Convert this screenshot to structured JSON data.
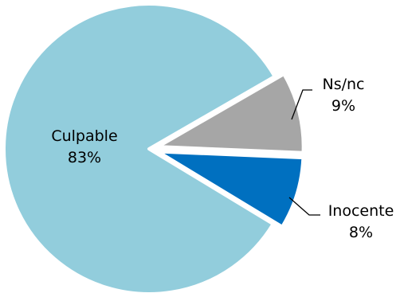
{
  "chart_data": {
    "type": "pie",
    "start_angle_deg": -30,
    "direction": "clockwise",
    "slices": [
      {
        "label": "Ns/nc",
        "value": 9,
        "value_label": "9%",
        "color": "#A6A6A6",
        "exploded": true
      },
      {
        "label": "Inocente",
        "value": 8,
        "value_label": "8%",
        "color": "#0070C0",
        "exploded": true
      },
      {
        "label": "Culpable",
        "value": 83,
        "value_label": "83%",
        "color": "#92CDDC",
        "exploded": false
      }
    ],
    "slice_border_color": "#FFFFFF",
    "leader_line_color": "#000000",
    "title": "",
    "legend": "none"
  }
}
